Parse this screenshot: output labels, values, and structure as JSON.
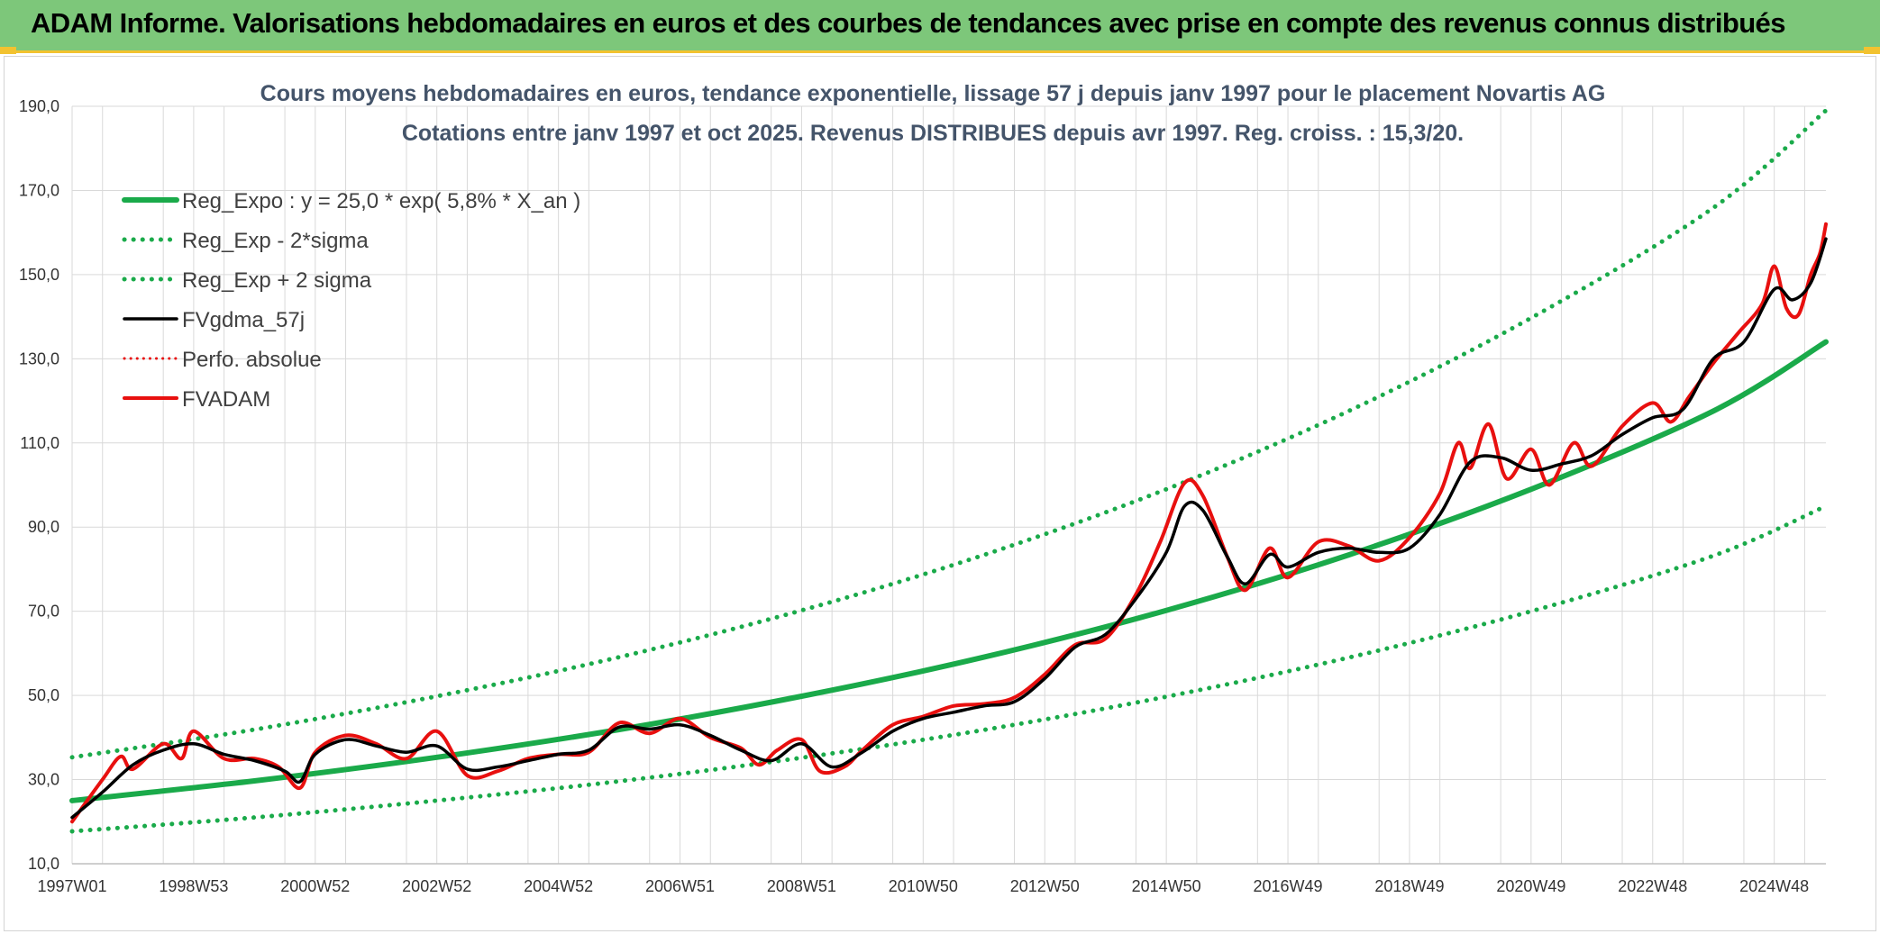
{
  "banner": {
    "title": "ADAM Informe. Valorisations hebdomadaires en euros et des courbes de tendances avec prise en compte des revenus connus distribués"
  },
  "colors": {
    "banner_bg": "#7dc77a",
    "banner_accent": "#f2c230",
    "trend": "#1aaa4a",
    "smoothed": "#000000",
    "fvadam": "#e8100f",
    "perfo": "#e8100f"
  },
  "chart_data": {
    "type": "line",
    "title": "Cours moyens hebdomadaires en euros, tendance exponentielle, lissage 57 j depuis janv 1997 pour le placement Novartis AG",
    "subtitle": "Cotations entre janv 1997 et oct 2025. Revenus DISTRIBUES depuis avr 1997. Reg. croiss. : 15,3/20.",
    "xlabel": "",
    "ylabel": "",
    "ylim": [
      10,
      190
    ],
    "xlim": [
      1997.0,
      2025.85
    ],
    "yticks": [
      "10,0",
      "30,0",
      "50,0",
      "70,0",
      "90,0",
      "110,0",
      "130,0",
      "150,0",
      "170,0",
      "190,0"
    ],
    "xticks": [
      {
        "x": 1997.0,
        "label": "1997W01"
      },
      {
        "x": 1999.0,
        "label": "1998W53"
      },
      {
        "x": 2001.0,
        "label": "2000W52"
      },
      {
        "x": 2003.0,
        "label": "2002W52"
      },
      {
        "x": 2005.0,
        "label": "2004W52"
      },
      {
        "x": 2007.0,
        "label": "2006W51"
      },
      {
        "x": 2009.0,
        "label": "2008W51"
      },
      {
        "x": 2011.0,
        "label": "2010W50"
      },
      {
        "x": 2013.0,
        "label": "2012W50"
      },
      {
        "x": 2015.0,
        "label": "2014W50"
      },
      {
        "x": 2017.0,
        "label": "2016W49"
      },
      {
        "x": 2019.0,
        "label": "2018W49"
      },
      {
        "x": 2021.0,
        "label": "2020W49"
      },
      {
        "x": 2023.0,
        "label": "2022W48"
      },
      {
        "x": 2025.0,
        "label": "2024W48"
      }
    ],
    "grid": true,
    "legend_position": "top-left",
    "series": [
      {
        "name": "Reg_Expo : y = 25,0 * exp( 5,8% *  X_an )",
        "style": "solid",
        "color": "#1aaa4a",
        "points": [
          [
            1997.0,
            25.0
          ],
          [
            2000.0,
            29.7
          ],
          [
            2003.0,
            35.3
          ],
          [
            2006.0,
            41.9
          ],
          [
            2009.0,
            49.8
          ],
          [
            2012.0,
            59.1
          ],
          [
            2015.0,
            70.2
          ],
          [
            2018.0,
            83.4
          ],
          [
            2021.0,
            99.0
          ],
          [
            2024.0,
            117.6
          ],
          [
            2025.85,
            134.0
          ]
        ]
      },
      {
        "name": "Reg_Exp - 2*sigma",
        "style": "dotted",
        "color": "#1aaa4a",
        "points": [
          [
            1997.0,
            17.7
          ],
          [
            2000.0,
            21.0
          ],
          [
            2003.0,
            25.0
          ],
          [
            2006.0,
            29.6
          ],
          [
            2009.0,
            35.2
          ],
          [
            2012.0,
            41.8
          ],
          [
            2015.0,
            49.7
          ],
          [
            2018.0,
            59.0
          ],
          [
            2021.0,
            70.0
          ],
          [
            2024.0,
            83.2
          ],
          [
            2025.85,
            95.0
          ]
        ]
      },
      {
        "name": "Reg_Exp + 2 sigma",
        "style": "dotted",
        "color": "#1aaa4a",
        "points": [
          [
            1997.0,
            35.3
          ],
          [
            2000.0,
            41.9
          ],
          [
            2003.0,
            49.8
          ],
          [
            2006.0,
            59.1
          ],
          [
            2009.0,
            70.2
          ],
          [
            2012.0,
            83.4
          ],
          [
            2015.0,
            99.0
          ],
          [
            2018.0,
            117.6
          ],
          [
            2021.0,
            139.7
          ],
          [
            2024.0,
            165.9
          ],
          [
            2025.85,
            189.0
          ]
        ]
      },
      {
        "name": "FVgdma_57j",
        "style": "solid",
        "color": "#000000",
        "points": [
          [
            1997.0,
            21.0
          ],
          [
            1997.5,
            27.0
          ],
          [
            1998.0,
            33.5
          ],
          [
            1998.5,
            37.0
          ],
          [
            1999.0,
            38.5
          ],
          [
            1999.5,
            36.0
          ],
          [
            2000.0,
            34.5
          ],
          [
            2000.5,
            32.0
          ],
          [
            2000.75,
            29.5
          ],
          [
            2001.0,
            36.0
          ],
          [
            2001.5,
            39.5
          ],
          [
            2002.0,
            38.0
          ],
          [
            2002.5,
            36.5
          ],
          [
            2003.0,
            38.0
          ],
          [
            2003.5,
            32.5
          ],
          [
            2004.0,
            33.0
          ],
          [
            2004.5,
            34.5
          ],
          [
            2005.0,
            36.0
          ],
          [
            2005.5,
            37.0
          ],
          [
            2006.0,
            42.5
          ],
          [
            2006.5,
            42.0
          ],
          [
            2007.0,
            43.0
          ],
          [
            2007.5,
            40.5
          ],
          [
            2008.0,
            37.0
          ],
          [
            2008.5,
            34.5
          ],
          [
            2009.0,
            38.5
          ],
          [
            2009.5,
            33.0
          ],
          [
            2010.0,
            36.5
          ],
          [
            2010.5,
            41.5
          ],
          [
            2011.0,
            44.5
          ],
          [
            2011.5,
            46.0
          ],
          [
            2012.0,
            47.5
          ],
          [
            2012.5,
            48.5
          ],
          [
            2013.0,
            54.0
          ],
          [
            2013.5,
            61.5
          ],
          [
            2014.0,
            64.5
          ],
          [
            2014.5,
            73.0
          ],
          [
            2015.0,
            84.0
          ],
          [
            2015.3,
            95.0
          ],
          [
            2015.6,
            94.0
          ],
          [
            2016.0,
            83.0
          ],
          [
            2016.3,
            76.5
          ],
          [
            2016.7,
            83.5
          ],
          [
            2017.0,
            80.5
          ],
          [
            2017.5,
            84.0
          ],
          [
            2018.0,
            85.0
          ],
          [
            2018.5,
            84.0
          ],
          [
            2019.0,
            85.0
          ],
          [
            2019.5,
            93.0
          ],
          [
            2020.0,
            105.5
          ],
          [
            2020.5,
            106.5
          ],
          [
            2021.0,
            103.5
          ],
          [
            2021.5,
            105.0
          ],
          [
            2022.0,
            107.0
          ],
          [
            2022.5,
            112.0
          ],
          [
            2023.0,
            116.0
          ],
          [
            2023.5,
            118.0
          ],
          [
            2024.0,
            130.0
          ],
          [
            2024.5,
            134.0
          ],
          [
            2025.0,
            146.5
          ],
          [
            2025.3,
            144.0
          ],
          [
            2025.6,
            148.0
          ],
          [
            2025.85,
            158.5
          ]
        ]
      },
      {
        "name": "Perfo. absolue",
        "style": "dotted",
        "color": "#e8100f",
        "points": []
      },
      {
        "name": "FVADAM",
        "style": "solid",
        "color": "#e8100f",
        "points": [
          [
            1997.0,
            20.0
          ],
          [
            1997.5,
            30.0
          ],
          [
            1997.8,
            35.5
          ],
          [
            1998.0,
            32.5
          ],
          [
            1998.5,
            38.5
          ],
          [
            1998.8,
            35.0
          ],
          [
            1999.0,
            41.5
          ],
          [
            1999.5,
            35.0
          ],
          [
            2000.0,
            35.0
          ],
          [
            2000.4,
            33.0
          ],
          [
            2000.75,
            28.0
          ],
          [
            2001.0,
            36.5
          ],
          [
            2001.5,
            40.5
          ],
          [
            2002.0,
            38.5
          ],
          [
            2002.5,
            35.0
          ],
          [
            2003.0,
            41.5
          ],
          [
            2003.5,
            31.0
          ],
          [
            2004.0,
            32.0
          ],
          [
            2004.5,
            35.0
          ],
          [
            2005.0,
            36.0
          ],
          [
            2005.5,
            36.5
          ],
          [
            2006.0,
            43.5
          ],
          [
            2006.5,
            41.0
          ],
          [
            2007.0,
            44.5
          ],
          [
            2007.5,
            40.0
          ],
          [
            2008.0,
            37.5
          ],
          [
            2008.3,
            33.5
          ],
          [
            2008.6,
            37.0
          ],
          [
            2009.0,
            39.5
          ],
          [
            2009.3,
            32.0
          ],
          [
            2009.7,
            33.0
          ],
          [
            2010.0,
            37.0
          ],
          [
            2010.5,
            43.0
          ],
          [
            2011.0,
            45.0
          ],
          [
            2011.5,
            47.5
          ],
          [
            2012.0,
            48.0
          ],
          [
            2012.5,
            49.5
          ],
          [
            2013.0,
            55.0
          ],
          [
            2013.5,
            62.0
          ],
          [
            2014.0,
            63.5
          ],
          [
            2014.5,
            74.0
          ],
          [
            2014.9,
            86.5
          ],
          [
            2015.3,
            100.5
          ],
          [
            2015.6,
            97.5
          ],
          [
            2016.0,
            83.0
          ],
          [
            2016.3,
            75.0
          ],
          [
            2016.7,
            85.0
          ],
          [
            2017.0,
            78.0
          ],
          [
            2017.5,
            86.5
          ],
          [
            2018.0,
            85.5
          ],
          [
            2018.5,
            82.0
          ],
          [
            2019.0,
            87.5
          ],
          [
            2019.5,
            98.0
          ],
          [
            2019.8,
            110.0
          ],
          [
            2020.0,
            104.0
          ],
          [
            2020.3,
            114.5
          ],
          [
            2020.6,
            101.5
          ],
          [
            2021.0,
            108.5
          ],
          [
            2021.3,
            100.0
          ],
          [
            2021.7,
            110.0
          ],
          [
            2022.0,
            104.5
          ],
          [
            2022.5,
            114.0
          ],
          [
            2023.0,
            119.5
          ],
          [
            2023.3,
            115.0
          ],
          [
            2023.6,
            121.0
          ],
          [
            2024.0,
            129.0
          ],
          [
            2024.4,
            136.0
          ],
          [
            2024.8,
            143.0
          ],
          [
            2025.0,
            152.0
          ],
          [
            2025.2,
            142.0
          ],
          [
            2025.4,
            140.5
          ],
          [
            2025.6,
            150.0
          ],
          [
            2025.75,
            155.0
          ],
          [
            2025.85,
            162.0
          ]
        ]
      }
    ]
  }
}
